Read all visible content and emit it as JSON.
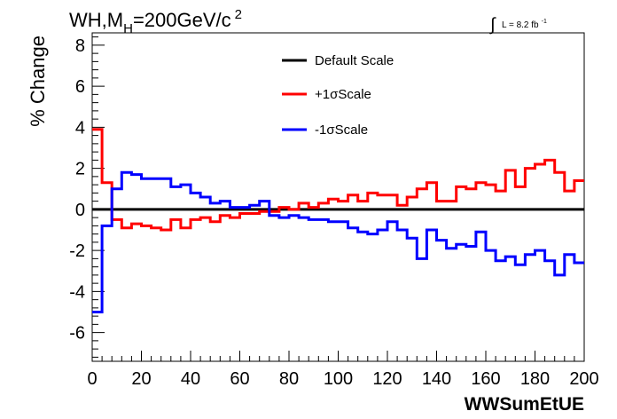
{
  "chart_data": {
    "type": "line",
    "title_main": "WH,M",
    "title_sub": "H",
    "title_rest": "=200GeV/c",
    "title_sup": "2",
    "lumi_symbol": "∫",
    "lumi_label": "L = 8.2 fb",
    "lumi_sup": "-1",
    "xlabel": "WWSumEtUE",
    "ylabel": "% Change",
    "xlim": [
      0,
      200
    ],
    "ylim": [
      -7.4,
      8.6
    ],
    "xticks": [
      0,
      20,
      40,
      60,
      80,
      100,
      120,
      140,
      160,
      180,
      200
    ],
    "yticks": [
      -6,
      -4,
      -2,
      0,
      2,
      4,
      6,
      8
    ],
    "bin_width": 4,
    "legend_position": "top-center",
    "series": [
      {
        "name": "Default Scale",
        "color": "#000000",
        "values": [
          0,
          0,
          0,
          0,
          0,
          0,
          0,
          0,
          0,
          0,
          0,
          0,
          0,
          0,
          0,
          0,
          0,
          0,
          0,
          0,
          0,
          0,
          0,
          0,
          0,
          0,
          0,
          0,
          0,
          0,
          0,
          0,
          0,
          0,
          0,
          0,
          0,
          0,
          0,
          0,
          0,
          0,
          0,
          0,
          0,
          0,
          0,
          0,
          0,
          0
        ]
      },
      {
        "name": "+1σScale",
        "color": "#ff0000",
        "values": [
          3.9,
          1.3,
          -0.5,
          -0.9,
          -0.7,
          -0.8,
          -0.9,
          -1.0,
          -0.5,
          -0.9,
          -0.5,
          -0.4,
          -0.6,
          -0.3,
          -0.4,
          -0.2,
          -0.2,
          -0.1,
          -0.1,
          0.1,
          0.0,
          0.3,
          0.1,
          0.3,
          0.5,
          0.4,
          0.7,
          0.4,
          0.8,
          0.7,
          0.7,
          0.2,
          0.6,
          1.0,
          1.3,
          0.4,
          0.4,
          1.1,
          1.0,
          1.3,
          1.2,
          0.9,
          1.9,
          1.1,
          2.0,
          2.2,
          2.4,
          1.8,
          0.9,
          1.4
        ]
      },
      {
        "name": "-1σScale",
        "color": "#0000ff",
        "values": [
          -5.0,
          -0.8,
          1.0,
          1.8,
          1.7,
          1.5,
          1.5,
          1.5,
          1.1,
          1.2,
          0.8,
          0.6,
          0.3,
          0.4,
          0.1,
          0.1,
          0.2,
          0.4,
          -0.3,
          -0.4,
          -0.3,
          -0.4,
          -0.5,
          -0.5,
          -0.6,
          -0.6,
          -0.9,
          -1.1,
          -1.2,
          -1.0,
          -0.6,
          -1.0,
          -1.4,
          -2.4,
          -1.0,
          -1.5,
          -1.9,
          -1.7,
          -1.8,
          -1.1,
          -2.0,
          -2.5,
          -2.3,
          -2.7,
          -2.2,
          -2.0,
          -2.5,
          -3.2,
          -2.2,
          -2.6
        ]
      }
    ]
  }
}
